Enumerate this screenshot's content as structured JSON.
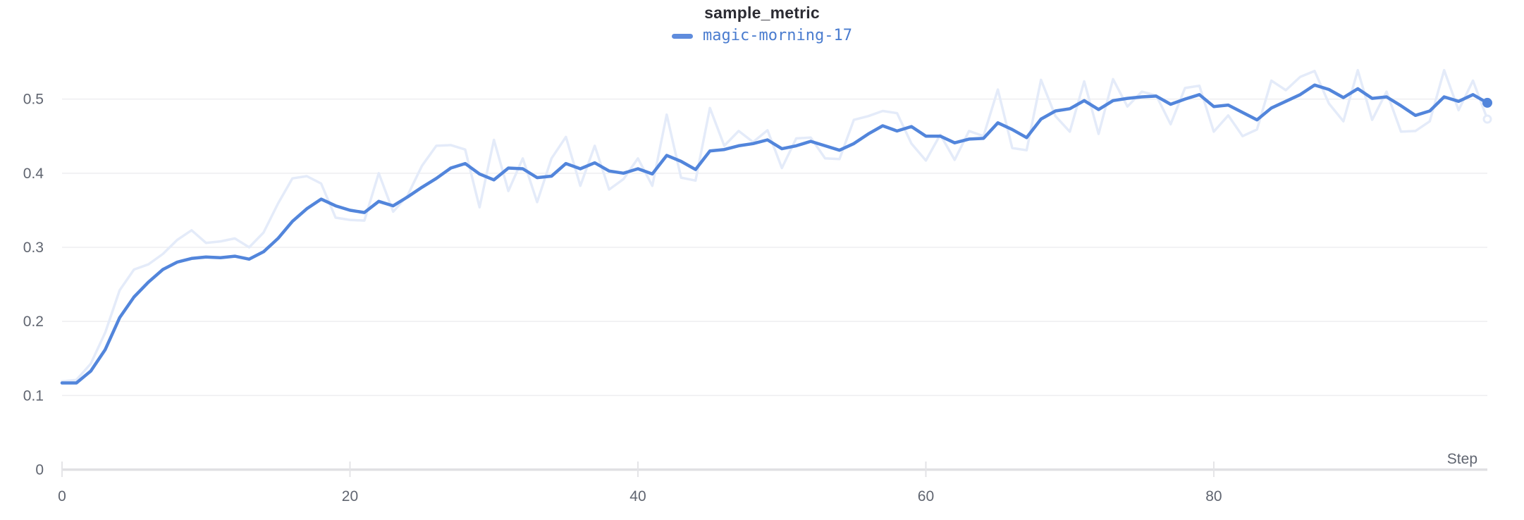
{
  "header": {
    "title": "sample_metric"
  },
  "legend": {
    "series_label": "magic-morning-17",
    "swatch_color": "#5f8cdd",
    "text_color": "#4a7ccf"
  },
  "colors": {
    "line": "#5285db",
    "line_faded": "#e4ebf9",
    "grid": "#eeeef0",
    "axis": "#e0e0e3",
    "tick_mark": "#e4e4e7",
    "tick_text": "#606570",
    "title_text": "#2c2c33",
    "background": "#ffffff"
  },
  "chart_data": {
    "type": "line",
    "title": "sample_metric",
    "xlabel": "Step",
    "ylabel": "",
    "xlim": [
      0,
      99
    ],
    "ylim": [
      0,
      0.55
    ],
    "grid": "horizontal",
    "legend_position": "top-center",
    "x_ticks": [
      {
        "v": 0,
        "label": "0"
      },
      {
        "v": 20,
        "label": "20"
      },
      {
        "v": 40,
        "label": "40"
      },
      {
        "v": 60,
        "label": "60"
      },
      {
        "v": 80,
        "label": "80"
      }
    ],
    "y_ticks": [
      {
        "v": 0,
        "label": "0"
      },
      {
        "v": 0.1,
        "label": "0.1"
      },
      {
        "v": 0.2,
        "label": "0.2"
      },
      {
        "v": 0.3,
        "label": "0.3"
      },
      {
        "v": 0.4,
        "label": "0.4"
      },
      {
        "v": 0.5,
        "label": "0.5"
      }
    ],
    "x": [
      0,
      1,
      2,
      3,
      4,
      5,
      6,
      7,
      8,
      9,
      10,
      11,
      12,
      13,
      14,
      15,
      16,
      17,
      18,
      19,
      20,
      21,
      22,
      23,
      24,
      25,
      26,
      27,
      28,
      29,
      30,
      31,
      32,
      33,
      34,
      35,
      36,
      37,
      38,
      39,
      40,
      41,
      42,
      43,
      44,
      45,
      46,
      47,
      48,
      49,
      50,
      51,
      52,
      53,
      54,
      55,
      56,
      57,
      58,
      59,
      60,
      61,
      62,
      63,
      64,
      65,
      66,
      67,
      68,
      69,
      70,
      71,
      72,
      73,
      74,
      75,
      76,
      77,
      78,
      79,
      80,
      81,
      82,
      83,
      84,
      85,
      86,
      87,
      88,
      89,
      90,
      91,
      92,
      93,
      94,
      95,
      96,
      97,
      98,
      99
    ],
    "series": [
      {
        "name": "magic-morning-17 (original)",
        "style": "raw-faded",
        "end_marker": "hollow",
        "values": [
          0.119,
          0.121,
          0.143,
          0.185,
          0.242,
          0.27,
          0.277,
          0.291,
          0.31,
          0.323,
          0.306,
          0.308,
          0.312,
          0.3,
          0.32,
          0.359,
          0.393,
          0.396,
          0.386,
          0.34,
          0.337,
          0.336,
          0.4,
          0.348,
          0.37,
          0.41,
          0.437,
          0.438,
          0.432,
          0.354,
          0.445,
          0.376,
          0.42,
          0.361,
          0.42,
          0.449,
          0.383,
          0.437,
          0.378,
          0.392,
          0.42,
          0.383,
          0.479,
          0.394,
          0.39,
          0.488,
          0.437,
          0.457,
          0.442,
          0.458,
          0.407,
          0.447,
          0.448,
          0.42,
          0.419,
          0.472,
          0.477,
          0.484,
          0.481,
          0.44,
          0.417,
          0.452,
          0.418,
          0.457,
          0.45,
          0.513,
          0.434,
          0.431,
          0.526,
          0.477,
          0.456,
          0.524,
          0.453,
          0.527,
          0.49,
          0.51,
          0.505,
          0.466,
          0.515,
          0.518,
          0.456,
          0.478,
          0.45,
          0.459,
          0.525,
          0.512,
          0.53,
          0.538,
          0.494,
          0.47,
          0.539,
          0.472,
          0.51,
          0.456,
          0.457,
          0.47,
          0.539,
          0.485,
          0.525,
          0.473
        ]
      },
      {
        "name": "magic-morning-17",
        "style": "smoothed",
        "end_marker": "filled",
        "values": [
          0.117,
          0.117,
          0.133,
          0.162,
          0.205,
          0.233,
          0.253,
          0.27,
          0.28,
          0.285,
          0.287,
          0.286,
          0.288,
          0.284,
          0.294,
          0.312,
          0.335,
          0.352,
          0.365,
          0.356,
          0.35,
          0.347,
          0.362,
          0.356,
          0.368,
          0.381,
          0.393,
          0.407,
          0.413,
          0.399,
          0.391,
          0.407,
          0.406,
          0.394,
          0.396,
          0.413,
          0.406,
          0.414,
          0.403,
          0.4,
          0.406,
          0.399,
          0.424,
          0.416,
          0.405,
          0.43,
          0.432,
          0.437,
          0.44,
          0.445,
          0.433,
          0.437,
          0.443,
          0.437,
          0.431,
          0.44,
          0.453,
          0.464,
          0.457,
          0.463,
          0.45,
          0.45,
          0.441,
          0.446,
          0.447,
          0.468,
          0.459,
          0.448,
          0.473,
          0.484,
          0.487,
          0.498,
          0.486,
          0.498,
          0.501,
          0.503,
          0.504,
          0.493,
          0.5,
          0.506,
          0.49,
          0.492,
          0.482,
          0.472,
          0.488,
          0.497,
          0.506,
          0.519,
          0.513,
          0.502,
          0.514,
          0.501,
          0.503,
          0.491,
          0.478,
          0.484,
          0.503,
          0.497,
          0.506,
          0.495
        ]
      }
    ]
  }
}
